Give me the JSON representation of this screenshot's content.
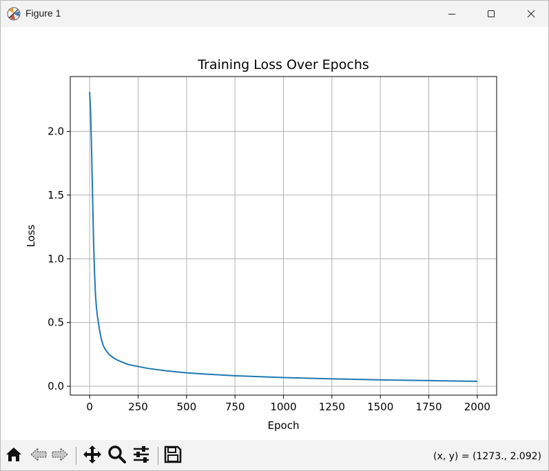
{
  "window": {
    "title": "Figure 1",
    "app_icon": "matplotlib-logo-icon",
    "controls": [
      "minimize-icon",
      "maximize-icon",
      "close-icon"
    ]
  },
  "toolbar": {
    "buttons": [
      {
        "name": "home-button",
        "icon": "home-icon"
      },
      {
        "name": "back-button",
        "icon": "arrow-left-icon"
      },
      {
        "name": "forward-button",
        "icon": "arrow-right-icon"
      },
      {
        "name": "pan-button",
        "icon": "move-icon"
      },
      {
        "name": "zoom-button",
        "icon": "magnifier-icon"
      },
      {
        "name": "configure-subplots-button",
        "icon": "sliders-icon"
      },
      {
        "name": "save-button",
        "icon": "floppy-disk-icon"
      }
    ],
    "coords": "(x, y) = (1273., 2.092)"
  },
  "colors": {
    "line": "#1f77b4",
    "grid": "#b0b0b0",
    "chrome": "#f3f3f3"
  },
  "chart_data": {
    "type": "line",
    "title": "Training Loss Over Epochs",
    "xlabel": "Epoch",
    "ylabel": "Loss",
    "xlim": [
      -100,
      2100
    ],
    "ylim": [
      -0.07,
      2.43
    ],
    "xticks": [
      0,
      250,
      500,
      750,
      1000,
      1250,
      1500,
      1750,
      2000
    ],
    "yticks": [
      0.0,
      0.5,
      1.0,
      1.5,
      2.0
    ],
    "xtick_labels": [
      "0",
      "250",
      "500",
      "750",
      "1000",
      "1250",
      "1500",
      "1750",
      "2000"
    ],
    "ytick_labels": [
      "0.0",
      "0.5",
      "1.0",
      "1.5",
      "2.0"
    ],
    "grid": true,
    "series": [
      {
        "x": [
          0,
          5,
          10,
          15,
          20,
          25,
          30,
          35,
          40,
          50,
          60,
          70,
          80,
          90,
          100,
          125,
          150,
          200,
          250,
          300,
          400,
          500,
          600,
          750,
          1000,
          1250,
          1500,
          1750,
          2000
        ],
        "values": [
          2.31,
          2.15,
          1.85,
          1.5,
          1.15,
          0.9,
          0.72,
          0.62,
          0.55,
          0.45,
          0.37,
          0.32,
          0.29,
          0.27,
          0.25,
          0.22,
          0.2,
          0.17,
          0.155,
          0.14,
          0.12,
          0.105,
          0.095,
          0.082,
          0.068,
          0.058,
          0.05,
          0.044,
          0.038
        ]
      }
    ]
  }
}
